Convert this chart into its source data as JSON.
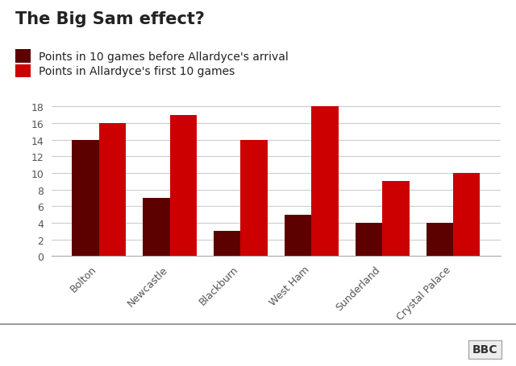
{
  "title": "The Big Sam effect?",
  "categories": [
    "Bolton",
    "Newcastle",
    "Blackburn",
    "West Ham",
    "Sunderland",
    "Crystal Palace"
  ],
  "before_values": [
    14,
    7,
    3,
    5,
    4,
    4
  ],
  "after_values": [
    16,
    17,
    14,
    18,
    9,
    10
  ],
  "before_color": "#5c0000",
  "after_color": "#cc0000",
  "legend_before": "Points in 10 games before Allardyce's arrival",
  "legend_after": "Points in Allardyce's first 10 games",
  "ylim": [
    0,
    19
  ],
  "yticks": [
    0,
    2,
    4,
    6,
    8,
    10,
    12,
    14,
    16,
    18
  ],
  "background_color": "#ffffff",
  "title_fontsize": 15,
  "legend_fontsize": 10,
  "tick_fontsize": 9,
  "bar_width": 0.38,
  "bbc_logo_text": "BBC"
}
